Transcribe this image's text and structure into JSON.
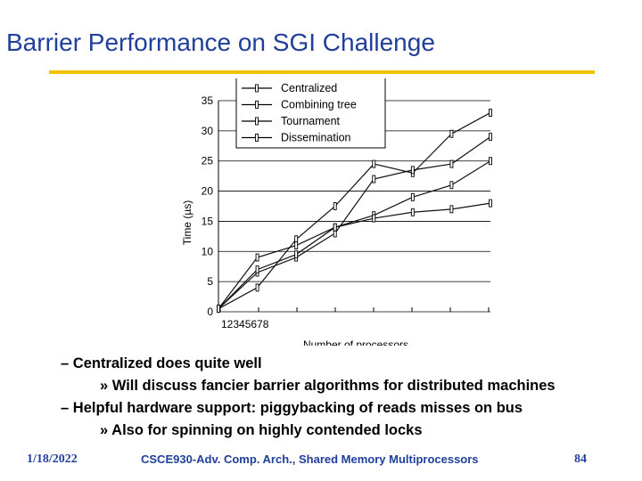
{
  "slide": {
    "title": "Barrier Performance on SGI Challenge",
    "bullets": [
      {
        "level": 1,
        "marker": "–",
        "text": "Centralized does quite well"
      },
      {
        "level": 2,
        "marker": "»",
        "text": "Will discuss fancier barrier algorithms for distributed machines"
      },
      {
        "level": 1,
        "marker": "–",
        "text": "Helpful hardware support: piggybacking of reads misses on bus"
      },
      {
        "level": 2,
        "marker": "»",
        "text": "Also for spinning on highly contended locks"
      }
    ],
    "footer": {
      "date": "1/18/2022",
      "center": "CSCE930-Adv. Comp. Arch., Shared Memory Multiprocessors",
      "page": "84"
    },
    "accent_color": "#f2c200",
    "title_color": "#1f3f9a"
  },
  "chart_data": {
    "type": "line",
    "title": "",
    "xlabel": "Number of processors",
    "ylabel": "Time (µs)",
    "x": [
      1,
      2,
      3,
      4,
      5,
      6,
      7,
      8
    ],
    "x_tick_labels": "12345678",
    "y_ticks": [
      0,
      5,
      10,
      15,
      20,
      25,
      30,
      35
    ],
    "ylim": [
      0,
      35
    ],
    "grid": "horizontal",
    "legend_position": "top",
    "series": [
      {
        "name": "Centralized",
        "values": [
          0.5,
          4,
          12,
          17.5,
          24.5,
          23,
          29.5,
          33
        ]
      },
      {
        "name": "Combining tree",
        "values": [
          0.5,
          6.5,
          9,
          13,
          22,
          23.5,
          24.5,
          29
        ]
      },
      {
        "name": "Tournament",
        "values": [
          0.5,
          7,
          9.5,
          14,
          16,
          19,
          21,
          25
        ]
      },
      {
        "name": "Dissemination",
        "values": [
          0.5,
          9,
          11,
          14,
          15.5,
          16.5,
          17,
          18
        ]
      }
    ]
  }
}
